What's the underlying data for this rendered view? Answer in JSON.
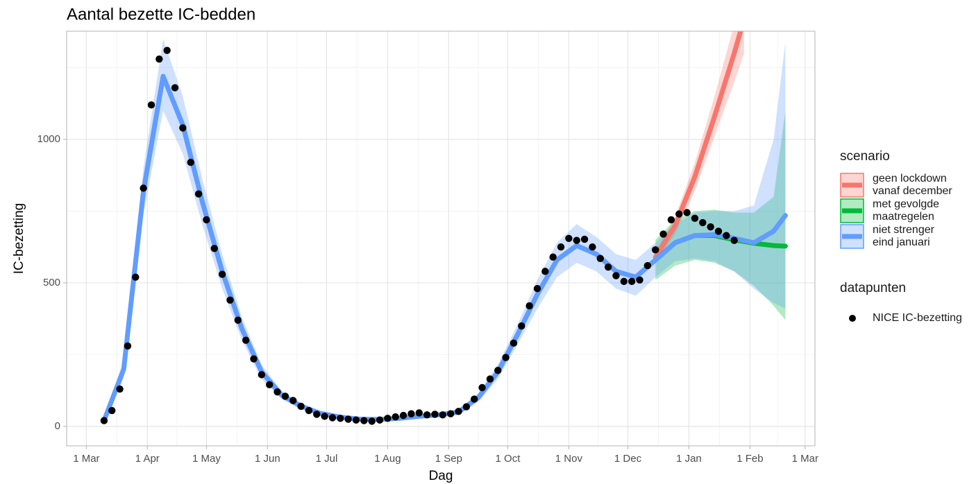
{
  "chart_data": {
    "type": "line",
    "title": "Aantal bezette IC-bedden",
    "x_label": "Dag",
    "y_label": "IC-bezetting",
    "xlim": [
      -10,
      370
    ],
    "ylim": [
      -68,
      1377
    ],
    "xticks": [
      {
        "value": 0,
        "label": "1 Mar"
      },
      {
        "value": 31,
        "label": "1 Apr"
      },
      {
        "value": 61,
        "label": "1 May"
      },
      {
        "value": 92,
        "label": "1 Jun"
      },
      {
        "value": 122,
        "label": "1 Jul"
      },
      {
        "value": 153,
        "label": "1 Aug"
      },
      {
        "value": 184,
        "label": "1 Sep"
      },
      {
        "value": 214,
        "label": "1 Oct"
      },
      {
        "value": 245,
        "label": "1 Nov"
      },
      {
        "value": 275,
        "label": "1 Dec"
      },
      {
        "value": 306,
        "label": "1 Jan"
      },
      {
        "value": 337,
        "label": "1 Feb"
      },
      {
        "value": 365,
        "label": "1 Mar"
      }
    ],
    "yticks": [
      0,
      500,
      1000
    ],
    "grid": true,
    "legend_position": "right",
    "series_legend_title": "scenario",
    "series": [
      {
        "name": "geen lockdown\n vanaf december",
        "color": "#f8766d",
        "x": [
          289,
          299,
          309,
          319,
          329,
          334
        ],
        "values": [
          590,
          700,
          870,
          1080,
          1300,
          1420
        ],
        "lower": [
          570,
          670,
          820,
          1010,
          1200,
          1300
        ],
        "upper": [
          610,
          730,
          920,
          1150,
          1400,
          1540
        ]
      },
      {
        "name": "met gevolgde\n maatregelen",
        "color": "#00ba38",
        "x": [
          289,
          299,
          309,
          319,
          329,
          339,
          349,
          355
        ],
        "values": [
          580,
          640,
          665,
          665,
          650,
          638,
          630,
          628
        ],
        "lower": [
          510,
          560,
          580,
          570,
          540,
          490,
          420,
          370
        ],
        "upper": [
          650,
          720,
          750,
          755,
          745,
          745,
          800,
          1100
        ]
      },
      {
        "name": "niet strenger\n eind januari",
        "color": "#619cff",
        "x": [
          9,
          19,
          29,
          39,
          49,
          59,
          69,
          79,
          89,
          99,
          109,
          119,
          129,
          139,
          149,
          159,
          169,
          179,
          189,
          199,
          209,
          219,
          229,
          239,
          249,
          259,
          269,
          279,
          289,
          299,
          309,
          319,
          329,
          339,
          349,
          355
        ],
        "values": [
          20,
          200,
          820,
          1220,
          1050,
          780,
          540,
          340,
          190,
          110,
          70,
          45,
          32,
          25,
          24,
          28,
          35,
          40,
          50,
          100,
          190,
          320,
          460,
          580,
          630,
          600,
          540,
          520,
          580,
          640,
          665,
          668,
          655,
          640,
          680,
          735
        ],
        "lower": [
          15,
          170,
          740,
          1100,
          950,
          700,
          480,
          300,
          165,
          95,
          60,
          38,
          26,
          20,
          19,
          22,
          28,
          32,
          40,
          85,
          165,
          285,
          410,
          520,
          570,
          540,
          480,
          455,
          520,
          575,
          585,
          575,
          540,
          480,
          430,
          410
        ],
        "upper": [
          25,
          230,
          900,
          1350,
          1150,
          860,
          600,
          380,
          215,
          125,
          82,
          52,
          38,
          30,
          29,
          34,
          42,
          48,
          60,
          115,
          215,
          355,
          510,
          640,
          705,
          660,
          600,
          580,
          640,
          705,
          745,
          750,
          750,
          770,
          1000,
          1340
        ]
      }
    ],
    "points_legend_title": "datapunten",
    "points": {
      "name": "NICE IC-bezetting",
      "color": "#000000",
      "x": [
        9,
        13,
        17,
        21,
        25,
        29,
        33,
        37,
        41,
        45,
        49,
        53,
        57,
        61,
        65,
        69,
        73,
        77,
        81,
        85,
        89,
        93,
        97,
        101,
        105,
        109,
        113,
        117,
        121,
        125,
        129,
        133,
        137,
        141,
        145,
        149,
        153,
        157,
        161,
        165,
        169,
        173,
        177,
        181,
        185,
        189,
        193,
        197,
        201,
        205,
        209,
        213,
        217,
        221,
        225,
        229,
        233,
        237,
        241,
        245,
        249,
        253,
        257,
        261,
        265,
        269,
        273,
        277,
        281,
        285,
        289,
        293,
        297,
        301,
        305,
        309,
        313,
        317,
        321,
        325,
        329
      ],
      "values": [
        20,
        55,
        130,
        280,
        520,
        830,
        1120,
        1280,
        1310,
        1180,
        1040,
        920,
        810,
        720,
        620,
        530,
        440,
        370,
        300,
        235,
        180,
        145,
        120,
        105,
        90,
        70,
        55,
        42,
        35,
        30,
        28,
        25,
        22,
        20,
        18,
        22,
        28,
        33,
        38,
        44,
        47,
        40,
        42,
        40,
        44,
        52,
        68,
        95,
        135,
        165,
        195,
        240,
        290,
        350,
        420,
        480,
        540,
        590,
        625,
        655,
        648,
        652,
        625,
        585,
        555,
        525,
        505,
        505,
        510,
        560,
        615,
        670,
        720,
        740,
        745,
        725,
        710,
        695,
        680,
        665,
        648
      ]
    }
  }
}
